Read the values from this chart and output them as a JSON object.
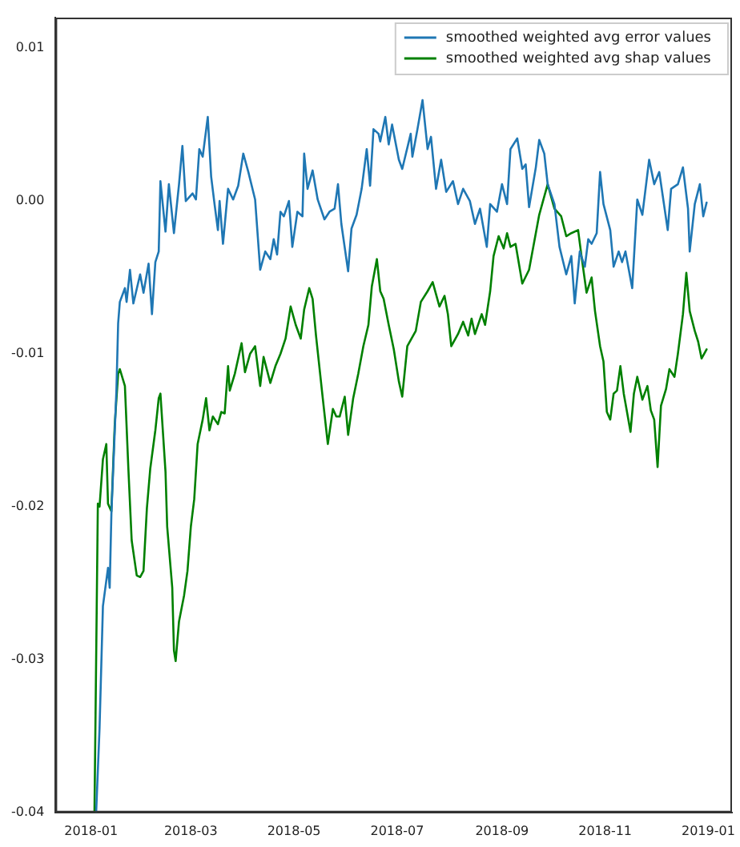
{
  "chart_data": {
    "type": "line",
    "legend": "top right",
    "grid": false,
    "marker": "none",
    "line_style": "solid",
    "xlim": [
      "2017-12-11",
      "2019-01-15"
    ],
    "xticks": [
      "2018-01",
      "2018-03",
      "2018-05",
      "2018-07",
      "2018-09",
      "2018-11",
      "2019-01"
    ],
    "ylim": [
      -0.04,
      0.012
    ],
    "yticks": [
      -0.04,
      -0.03,
      -0.02,
      -0.01,
      {
        "value": 0,
        "label": "0.00"
      },
      0.01
    ],
    "series": [
      {
        "name": "smoothed weighted avg error values",
        "color": "#1f77b4",
        "x": [
          "2018-01-04",
          "2018-01-06",
          "2018-01-08",
          "2018-01-11",
          "2018-01-12",
          "2018-01-13",
          "2018-01-16",
          "2018-01-17",
          "2018-01-18",
          "2018-01-21",
          "2018-01-22",
          "2018-01-24",
          "2018-01-26",
          "2018-01-30",
          "2018-02-01",
          "2018-02-04",
          "2018-02-06",
          "2018-02-08",
          "2018-02-10",
          "2018-02-11",
          "2018-02-14",
          "2018-02-16",
          "2018-02-19",
          "2018-02-22",
          "2018-02-24",
          "2018-02-26",
          "2018-03-02",
          "2018-03-04",
          "2018-03-06",
          "2018-03-08",
          "2018-03-11",
          "2018-03-13",
          "2018-03-15",
          "2018-03-17",
          "2018-03-18",
          "2018-03-20",
          "2018-03-23",
          "2018-03-26",
          "2018-03-29",
          "2018-04-01",
          "2018-04-04",
          "2018-04-08",
          "2018-04-11",
          "2018-04-14",
          "2018-04-17",
          "2018-04-19",
          "2018-04-21",
          "2018-04-23",
          "2018-04-25",
          "2018-04-28",
          "2018-04-30",
          "2018-05-03",
          "2018-05-06",
          "2018-05-07",
          "2018-05-09",
          "2018-05-12",
          "2018-05-15",
          "2018-05-19",
          "2018-05-22",
          "2018-05-25",
          "2018-05-27",
          "2018-05-29",
          "2018-06-02",
          "2018-06-04",
          "2018-06-07",
          "2018-06-10",
          "2018-06-13",
          "2018-06-15",
          "2018-06-17",
          "2018-06-20",
          "2018-06-21",
          "2018-06-24",
          "2018-06-26",
          "2018-06-28",
          "2018-07-02",
          "2018-07-04",
          "2018-07-09",
          "2018-07-10",
          "2018-07-13",
          "2018-07-16",
          "2018-07-19",
          "2018-07-21",
          "2018-07-24",
          "2018-07-27",
          "2018-07-30",
          "2018-08-03",
          "2018-08-06",
          "2018-08-09",
          "2018-08-13",
          "2018-08-16",
          "2018-08-19",
          "2018-08-23",
          "2018-08-25",
          "2018-08-29",
          "2018-09-01",
          "2018-09-04",
          "2018-09-06",
          "2018-09-10",
          "2018-09-13",
          "2018-09-15",
          "2018-09-17",
          "2018-09-21",
          "2018-09-23",
          "2018-09-26",
          "2018-09-28",
          "2018-10-02",
          "2018-10-05",
          "2018-10-09",
          "2018-10-12",
          "2018-10-14",
          "2018-10-17",
          "2018-10-20",
          "2018-10-22",
          "2018-10-24",
          "2018-10-27",
          "2018-10-29",
          "2018-10-31",
          "2018-11-04",
          "2018-11-06",
          "2018-11-09",
          "2018-11-11",
          "2018-11-13",
          "2018-11-17",
          "2018-11-20",
          "2018-11-23",
          "2018-11-27",
          "2018-11-30",
          "2018-12-03",
          "2018-12-08",
          "2018-12-10",
          "2018-12-14",
          "2018-12-17",
          "2018-12-20",
          "2018-12-21",
          "2018-12-24",
          "2018-12-27",
          "2018-12-29",
          "2018-12-31"
        ],
        "values": [
          -0.04,
          -0.0345,
          -0.0265,
          -0.024,
          -0.0253,
          -0.0205,
          -0.0123,
          -0.008,
          -0.0066,
          -0.0057,
          -0.0066,
          -0.0045,
          -0.0067,
          -0.0048,
          -0.006,
          -0.0041,
          -0.0074,
          -0.004,
          -0.0033,
          0.0013,
          -0.002,
          0.0011,
          -0.0021,
          0.0011,
          0.0036,
          0,
          0.0005,
          0.0001,
          0.0034,
          0.0029,
          0.0055,
          0.0016,
          -0.0002,
          -0.0019,
          0,
          -0.0028,
          0.0008,
          0.0001,
          0.001,
          0.0031,
          0.0019,
          0.0001,
          -0.0045,
          -0.0033,
          -0.0038,
          -0.0025,
          -0.0035,
          -0.0007,
          -0.001,
          0,
          -0.003,
          -0.0007,
          -0.001,
          0.0031,
          0.0008,
          0.002,
          0.0001,
          -0.0012,
          -0.0007,
          -0.0005,
          0.0011,
          -0.0015,
          -0.0046,
          -0.0018,
          -0.0009,
          0.0008,
          0.0034,
          0.001,
          0.0047,
          0.0044,
          0.0039,
          0.0055,
          0.0037,
          0.005,
          0.0027,
          0.0021,
          0.0044,
          0.0029,
          0.0047,
          0.0066,
          0.0034,
          0.0042,
          0.0008,
          0.0027,
          0.0006,
          0.0013,
          -0.0002,
          0.0008,
          0,
          -0.0015,
          -0.0005,
          -0.003,
          -0.0002,
          -0.0007,
          0.0011,
          -0.0002,
          0.0034,
          0.0041,
          0.0021,
          0.0024,
          -0.0004,
          0.0022,
          0.004,
          0.0031,
          0.0011,
          -0.0002,
          -0.003,
          -0.0048,
          -0.0036,
          -0.0067,
          -0.0033,
          -0.0043,
          -0.0025,
          -0.0028,
          -0.0021,
          0.0019,
          -0.0002,
          -0.0019,
          -0.0043,
          -0.0033,
          -0.004,
          -0.0033,
          -0.0057,
          0.0001,
          -0.0009,
          0.0027,
          0.0011,
          0.0019,
          -0.0019,
          0.0008,
          0.0011,
          0.0022,
          -0.0005,
          -0.0033,
          -0.0002,
          0.0011,
          -0.001,
          -0.0001
        ]
      },
      {
        "name": "smoothed weighted avg shap values",
        "color": "#008000",
        "x": [
          "2018-01-03",
          "2018-01-05",
          "2018-01-06",
          "2018-01-08",
          "2018-01-10",
          "2018-01-11",
          "2018-01-13",
          "2018-01-15",
          "2018-01-17",
          "2018-01-18",
          "2018-01-21",
          "2018-01-23",
          "2018-01-25",
          "2018-01-28",
          "2018-01-30",
          "2018-02-01",
          "2018-02-03",
          "2018-02-05",
          "2018-02-08",
          "2018-02-10",
          "2018-02-11",
          "2018-02-14",
          "2018-02-15",
          "2018-02-18",
          "2018-02-19",
          "2018-02-20",
          "2018-02-22",
          "2018-02-25",
          "2018-02-27",
          "2018-03-01",
          "2018-03-03",
          "2018-03-05",
          "2018-03-08",
          "2018-03-10",
          "2018-03-12",
          "2018-03-14",
          "2018-03-17",
          "2018-03-19",
          "2018-03-21",
          "2018-03-23",
          "2018-03-24",
          "2018-03-27",
          "2018-03-29",
          "2018-03-31",
          "2018-04-02",
          "2018-04-05",
          "2018-04-08",
          "2018-04-11",
          "2018-04-13",
          "2018-04-17",
          "2018-04-20",
          "2018-04-23",
          "2018-04-26",
          "2018-04-29",
          "2018-05-02",
          "2018-05-05",
          "2018-05-07",
          "2018-05-10",
          "2018-05-12",
          "2018-05-14",
          "2018-05-18",
          "2018-05-21",
          "2018-05-24",
          "2018-05-26",
          "2018-05-28",
          "2018-05-31",
          "2018-06-02",
          "2018-06-05",
          "2018-06-08",
          "2018-06-11",
          "2018-06-14",
          "2018-06-16",
          "2018-06-19",
          "2018-06-21",
          "2018-06-23",
          "2018-06-26",
          "2018-06-29",
          "2018-07-02",
          "2018-07-04",
          "2018-07-07",
          "2018-07-12",
          "2018-07-15",
          "2018-07-19",
          "2018-07-22",
          "2018-07-26",
          "2018-07-29",
          "2018-07-31",
          "2018-08-02",
          "2018-08-06",
          "2018-08-09",
          "2018-08-12",
          "2018-08-14",
          "2018-08-16",
          "2018-08-20",
          "2018-08-22",
          "2018-08-25",
          "2018-08-27",
          "2018-08-30",
          "2018-09-02",
          "2018-09-04",
          "2018-09-06",
          "2018-09-09",
          "2018-09-13",
          "2018-09-17",
          "2018-09-23",
          "2018-09-28",
          "2018-10-02",
          "2018-10-06",
          "2018-10-09",
          "2018-10-12",
          "2018-10-16",
          "2018-10-18",
          "2018-10-21",
          "2018-10-24",
          "2018-10-26",
          "2018-10-29",
          "2018-10-31",
          "2018-11-02",
          "2018-11-04",
          "2018-11-06",
          "2018-11-08",
          "2018-11-10",
          "2018-11-12",
          "2018-11-16",
          "2018-11-18",
          "2018-11-20",
          "2018-11-23",
          "2018-11-26",
          "2018-11-28",
          "2018-11-30",
          "2018-12-02",
          "2018-12-04",
          "2018-12-07",
          "2018-12-09",
          "2018-12-12",
          "2018-12-14",
          "2018-12-17",
          "2018-12-19",
          "2018-12-21",
          "2018-12-24",
          "2018-12-26",
          "2018-12-28",
          "2018-12-31"
        ],
        "values": [
          -0.04,
          -0.0198,
          -0.02,
          -0.0169,
          -0.0159,
          -0.0198,
          -0.0203,
          -0.0146,
          -0.0113,
          -0.011,
          -0.0121,
          -0.0174,
          -0.0222,
          -0.0245,
          -0.0246,
          -0.0242,
          -0.0201,
          -0.0175,
          -0.015,
          -0.0129,
          -0.0126,
          -0.0177,
          -0.0213,
          -0.0253,
          -0.0294,
          -0.0301,
          -0.0275,
          -0.0258,
          -0.0242,
          -0.0213,
          -0.0195,
          -0.0159,
          -0.0143,
          -0.0129,
          -0.015,
          -0.0141,
          -0.0146,
          -0.0138,
          -0.0139,
          -0.0108,
          -0.0124,
          -0.0113,
          -0.0103,
          -0.0093,
          -0.0112,
          -0.01,
          -0.0095,
          -0.0121,
          -0.0102,
          -0.0119,
          -0.0108,
          -0.01,
          -0.009,
          -0.0069,
          -0.0081,
          -0.009,
          -0.0071,
          -0.0057,
          -0.0064,
          -0.0088,
          -0.0129,
          -0.0159,
          -0.0136,
          -0.0141,
          -0.0141,
          -0.0128,
          -0.0153,
          -0.0129,
          -0.0113,
          -0.0095,
          -0.0081,
          -0.0056,
          -0.0038,
          -0.0059,
          -0.0064,
          -0.0081,
          -0.0097,
          -0.0118,
          -0.0128,
          -0.0095,
          -0.0085,
          -0.0066,
          -0.0059,
          -0.0053,
          -0.0069,
          -0.0062,
          -0.0074,
          -0.0095,
          -0.0087,
          -0.0079,
          -0.0088,
          -0.0077,
          -0.0087,
          -0.0074,
          -0.0081,
          -0.0059,
          -0.0036,
          -0.0023,
          -0.0031,
          -0.0021,
          -0.003,
          -0.0028,
          -0.0054,
          -0.0045,
          -0.0009,
          0.0011,
          -0.0005,
          -0.001,
          -0.0023,
          -0.0021,
          -0.0019,
          -0.0036,
          -0.006,
          -0.005,
          -0.0072,
          -0.0095,
          -0.0105,
          -0.0138,
          -0.0143,
          -0.0126,
          -0.0124,
          -0.0108,
          -0.0126,
          -0.0151,
          -0.0126,
          -0.0115,
          -0.013,
          -0.0121,
          -0.0137,
          -0.0143,
          -0.0174,
          -0.0134,
          -0.0123,
          -0.011,
          -0.0115,
          -0.01,
          -0.0074,
          -0.0047,
          -0.0072,
          -0.0085,
          -0.0092,
          -0.0103,
          -0.0097
        ]
      }
    ]
  }
}
